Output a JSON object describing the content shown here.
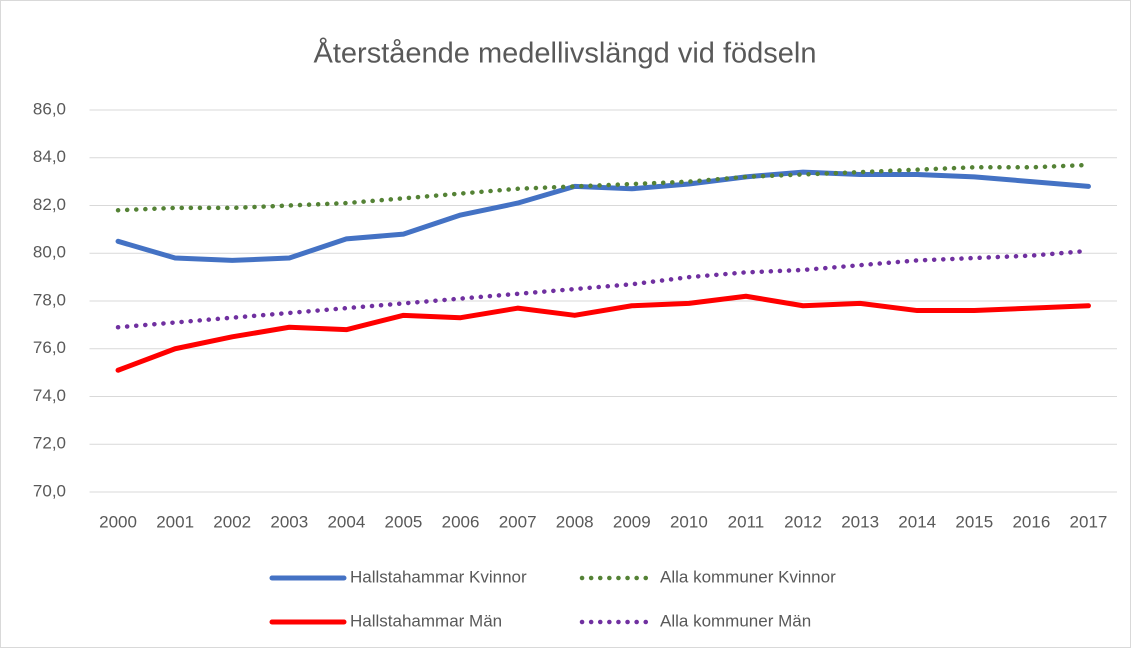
{
  "chart_data": {
    "type": "line",
    "title": "Återstående medellivslängd vid födseln",
    "categories": [
      "2000",
      "2001",
      "2002",
      "2003",
      "2004",
      "2005",
      "2006",
      "2007",
      "2008",
      "2009",
      "2010",
      "2011",
      "2012",
      "2013",
      "2014",
      "2015",
      "2016",
      "2017"
    ],
    "series": [
      {
        "name": "Hallstahammar Kvinnor",
        "color": "#4472c4",
        "style": "solid",
        "values": [
          80.5,
          79.8,
          79.7,
          79.8,
          80.6,
          80.8,
          81.6,
          82.1,
          82.8,
          82.7,
          82.9,
          83.2,
          83.4,
          83.3,
          83.3,
          83.2,
          83.0,
          82.8
        ]
      },
      {
        "name": "Alla kommuner Kvinnor",
        "color": "#548235",
        "style": "dotted",
        "values": [
          81.8,
          81.9,
          81.9,
          82.0,
          82.1,
          82.3,
          82.5,
          82.7,
          82.8,
          82.9,
          83.0,
          83.2,
          83.3,
          83.4,
          83.5,
          83.6,
          83.6,
          83.7
        ]
      },
      {
        "name": "Hallstahammar Män",
        "color": "#ff0000",
        "style": "solid",
        "values": [
          75.1,
          76.0,
          76.5,
          76.9,
          76.8,
          77.4,
          77.3,
          77.7,
          77.4,
          77.8,
          77.9,
          78.2,
          77.8,
          77.9,
          77.6,
          77.6,
          77.7,
          77.8
        ]
      },
      {
        "name": "Alla kommuner Män",
        "color": "#7030a0",
        "style": "dotted",
        "values": [
          76.9,
          77.1,
          77.3,
          77.5,
          77.7,
          77.9,
          78.1,
          78.3,
          78.5,
          78.7,
          79.0,
          79.2,
          79.3,
          79.5,
          79.7,
          79.8,
          79.9,
          80.1
        ]
      }
    ],
    "ylim": [
      70,
      86
    ],
    "yticks": [
      {
        "value": 70,
        "label": "70,0"
      },
      {
        "value": 72,
        "label": "72,0"
      },
      {
        "value": 74,
        "label": "74,0"
      },
      {
        "value": 76,
        "label": "76,0"
      },
      {
        "value": 78,
        "label": "78,0"
      },
      {
        "value": 80,
        "label": "80,0"
      },
      {
        "value": 82,
        "label": "82,0"
      },
      {
        "value": 84,
        "label": "84,0"
      },
      {
        "value": 86,
        "label": "86,0"
      }
    ],
    "grid": true,
    "legend": "bottom"
  }
}
